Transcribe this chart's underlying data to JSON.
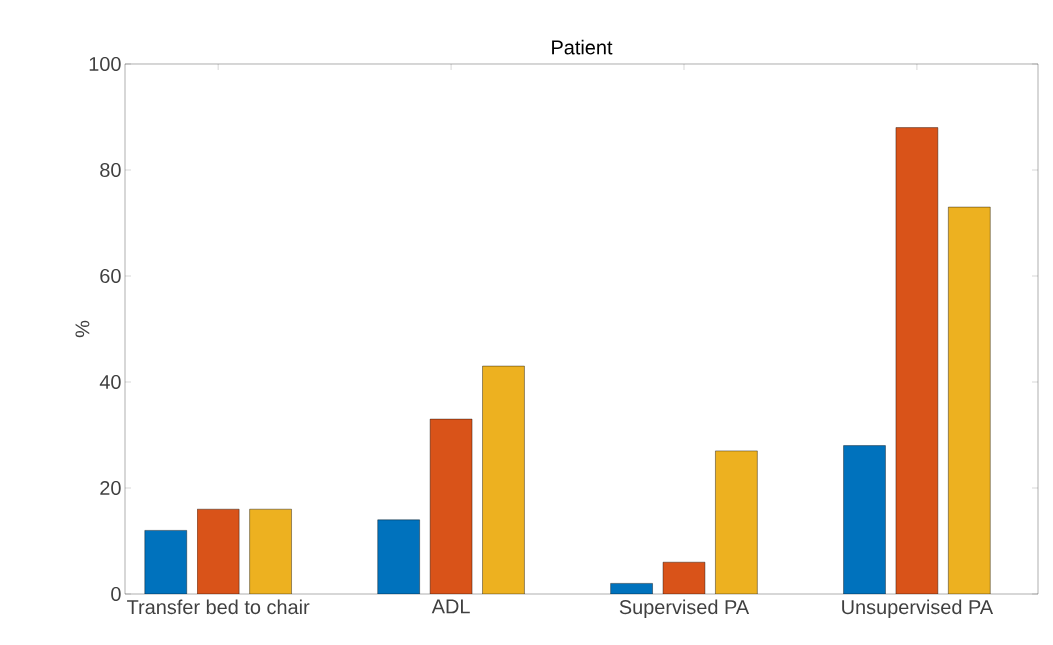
{
  "chart_data": {
    "type": "bar",
    "title": "Patient",
    "ylabel": "%",
    "categories": [
      "Transfer bed to chair",
      "ADL",
      "Supervised PA",
      "Unsupervised PA"
    ],
    "series": [
      {
        "color": "#0072bd",
        "values": [
          12,
          14,
          2,
          28
        ]
      },
      {
        "color": "#d95319",
        "values": [
          16,
          33,
          6,
          88
        ]
      },
      {
        "color": "#edb120",
        "values": [
          16,
          43,
          27,
          73
        ]
      }
    ],
    "ylim": [
      0,
      100
    ],
    "yticks": [
      0,
      20,
      40,
      60,
      80,
      100
    ],
    "grid": false
  }
}
